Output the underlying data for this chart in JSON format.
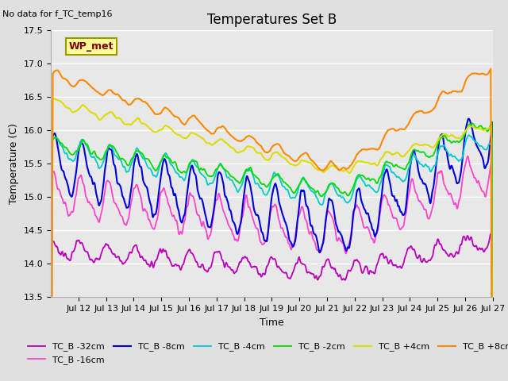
{
  "title": "Temperatures Set B",
  "subtitle": "No data for f_TC_temp16",
  "xlabel": "Time",
  "ylabel": "Temperature (C)",
  "ylim": [
    13.5,
    17.5
  ],
  "xlim_days": [
    11.0,
    27.0
  ],
  "xtick_days": [
    12,
    13,
    14,
    15,
    16,
    17,
    18,
    19,
    20,
    21,
    22,
    23,
    24,
    25,
    26,
    27
  ],
  "background_color": "#e0e0e0",
  "plot_bg_color": "#e8e8e8",
  "grid_color": "#ffffff",
  "wp_met_label": "WP_met",
  "wp_met_color": "#800000",
  "wp_met_bg": "#ffff99",
  "wp_met_border": "#999900",
  "series": [
    {
      "label": "TC_B -32cm",
      "color": "#bb00bb",
      "lw": 1.3
    },
    {
      "label": "TC_B -16cm",
      "color": "#ff44cc",
      "lw": 1.3
    },
    {
      "label": "TC_B -8cm",
      "color": "#0000dd",
      "lw": 1.5
    },
    {
      "label": "TC_B -4cm",
      "color": "#00cccc",
      "lw": 1.3
    },
    {
      "label": "TC_B -2cm",
      "color": "#00dd00",
      "lw": 1.3
    },
    {
      "label": "TC_B +4cm",
      "color": "#dddd00",
      "lw": 1.5
    },
    {
      "label": "TC_B +8cm",
      "color": "#ff8800",
      "lw": 1.5
    }
  ],
  "title_fontsize": 12,
  "axis_fontsize": 9,
  "tick_fontsize": 8,
  "legend_fontsize": 8
}
